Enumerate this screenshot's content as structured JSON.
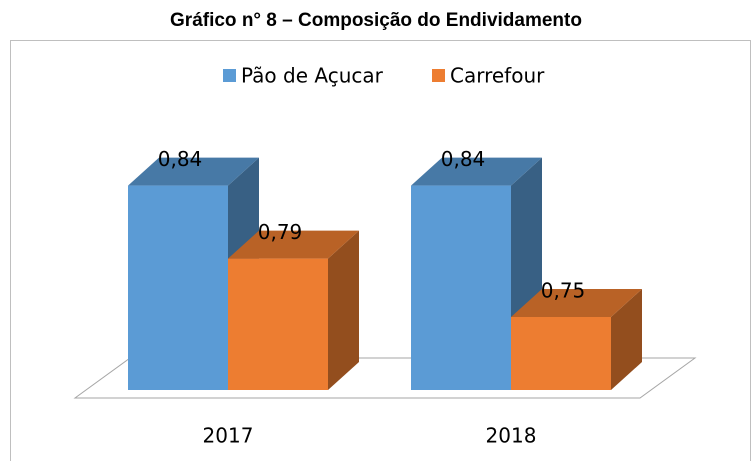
{
  "chart_data": {
    "type": "bar3d",
    "title": "Gráfico n° 8 – Composição do Endividamento",
    "categories": [
      "2017",
      "2018"
    ],
    "series": [
      {
        "name": "Pão de Açucar",
        "color": "#5b9bd5",
        "values": [
          0.84,
          0.84
        ],
        "value_labels": [
          "0,84",
          "0,84"
        ]
      },
      {
        "name": "Carrefour",
        "color": "#ed7d31",
        "values": [
          0.79,
          0.75
        ],
        "value_labels": [
          "0,79",
          "0,75"
        ]
      }
    ],
    "ylim": [
      0.7,
      0.85
    ],
    "legend": "top"
  }
}
